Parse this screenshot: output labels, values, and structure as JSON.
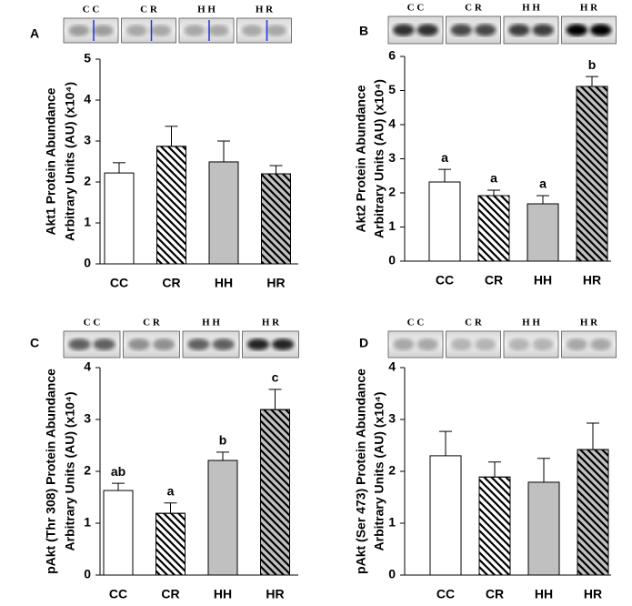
{
  "chart_data": [
    {
      "type": "bar",
      "panel_label": "A",
      "blot_labels": [
        "C C",
        "C R",
        "H H",
        "H R"
      ],
      "ylabel": [
        "Akt1 Protein Abundance",
        "Arbitrary Units (AU) (x10⁴)"
      ],
      "categories": [
        "CC",
        "CR",
        "HH",
        "HR"
      ],
      "values": [
        2.22,
        2.87,
        2.49,
        2.2
      ],
      "errors": [
        0.25,
        0.49,
        0.51,
        0.2
      ],
      "colors": [
        "#ffffff",
        "#ffffff",
        "#c0c0c0",
        "#c0c0c0"
      ],
      "hatch": [
        false,
        true,
        false,
        true
      ],
      "ylim": [
        0,
        5
      ],
      "yticks": [
        0,
        1,
        2,
        3,
        4,
        5
      ]
    },
    {
      "type": "bar",
      "panel_label": "B",
      "blot_labels": [
        "C C",
        "C R",
        "H H",
        "H R"
      ],
      "ylabel": [
        "Akt2 Protein Abundance",
        "Arbitrary Units (AU) (x10⁴)"
      ],
      "categories": [
        "CC",
        "CR",
        "HH",
        "HR"
      ],
      "values": [
        2.32,
        1.92,
        1.68,
        5.12
      ],
      "errors": [
        0.37,
        0.16,
        0.24,
        0.29
      ],
      "annotations": [
        "a",
        "a",
        "a",
        "b"
      ],
      "colors": [
        "#ffffff",
        "#ffffff",
        "#c0c0c0",
        "#c0c0c0"
      ],
      "hatch": [
        false,
        true,
        false,
        true
      ],
      "ylim": [
        0,
        6
      ],
      "yticks": [
        0,
        1,
        2,
        3,
        4,
        5,
        6
      ]
    },
    {
      "type": "bar",
      "panel_label": "C",
      "blot_labels": [
        "C C",
        "C R",
        "H H",
        "H R"
      ],
      "ylabel": [
        "pAkt (Thr 308) Protein Abundance",
        "Arbitrary Units (AU) (x10⁴)"
      ],
      "categories": [
        "CC",
        "CR",
        "HH",
        "HR"
      ],
      "values": [
        1.63,
        1.19,
        2.21,
        3.19
      ],
      "errors": [
        0.14,
        0.2,
        0.16,
        0.39
      ],
      "annotations": [
        "ab",
        "a",
        "b",
        "c"
      ],
      "colors": [
        "#ffffff",
        "#ffffff",
        "#c0c0c0",
        "#c0c0c0"
      ],
      "hatch": [
        false,
        true,
        false,
        true
      ],
      "ylim": [
        0,
        4
      ],
      "yticks": [
        0,
        1,
        2,
        3,
        4
      ]
    },
    {
      "type": "bar",
      "panel_label": "D",
      "blot_labels": [
        "C C",
        "C R",
        "H H",
        "H R"
      ],
      "ylabel": [
        "pAkt (Ser 473) Protein Abundance",
        "Arbitrary Units (AU) (x10⁴)"
      ],
      "categories": [
        "CC",
        "CR",
        "HH",
        "HR"
      ],
      "values": [
        2.3,
        1.89,
        1.79,
        2.42
      ],
      "errors": [
        0.47,
        0.29,
        0.46,
        0.51
      ],
      "colors": [
        "#ffffff",
        "#ffffff",
        "#c0c0c0",
        "#c0c0c0"
      ],
      "hatch": [
        false,
        true,
        false,
        true
      ],
      "ylim": [
        0,
        4
      ],
      "yticks": [
        0,
        1,
        2,
        3,
        4
      ]
    }
  ]
}
